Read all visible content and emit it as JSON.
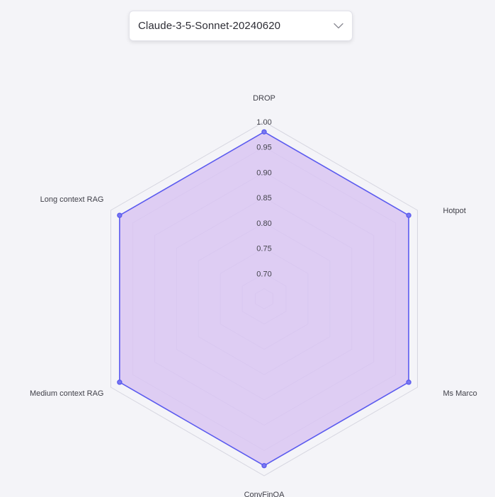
{
  "model_select": {
    "value": "Claude-3-5-Sonnet-20240620",
    "icon": "chevron-down-icon"
  },
  "chart_data": {
    "type": "radar",
    "axes": [
      "DROP",
      "Hotpot",
      "Ms Marco",
      "ConvFinQA",
      "Medium context RAG",
      "Long context RAG"
    ],
    "series": [
      {
        "values": [
          0.98,
          0.98,
          0.98,
          0.98,
          0.98,
          0.98
        ]
      }
    ],
    "range": [
      0.65,
      1.0
    ],
    "ticks": [
      0.7,
      0.75,
      0.8,
      0.85,
      0.9,
      0.95,
      1.0
    ],
    "tick_labels": [
      "0.70",
      "0.75",
      "0.80",
      "0.85",
      "0.90",
      "0.95",
      "1.00"
    ],
    "colors": {
      "stroke": "#5b5bef",
      "fill": "#d9c6f2",
      "grid": "#d6d6e0"
    }
  }
}
